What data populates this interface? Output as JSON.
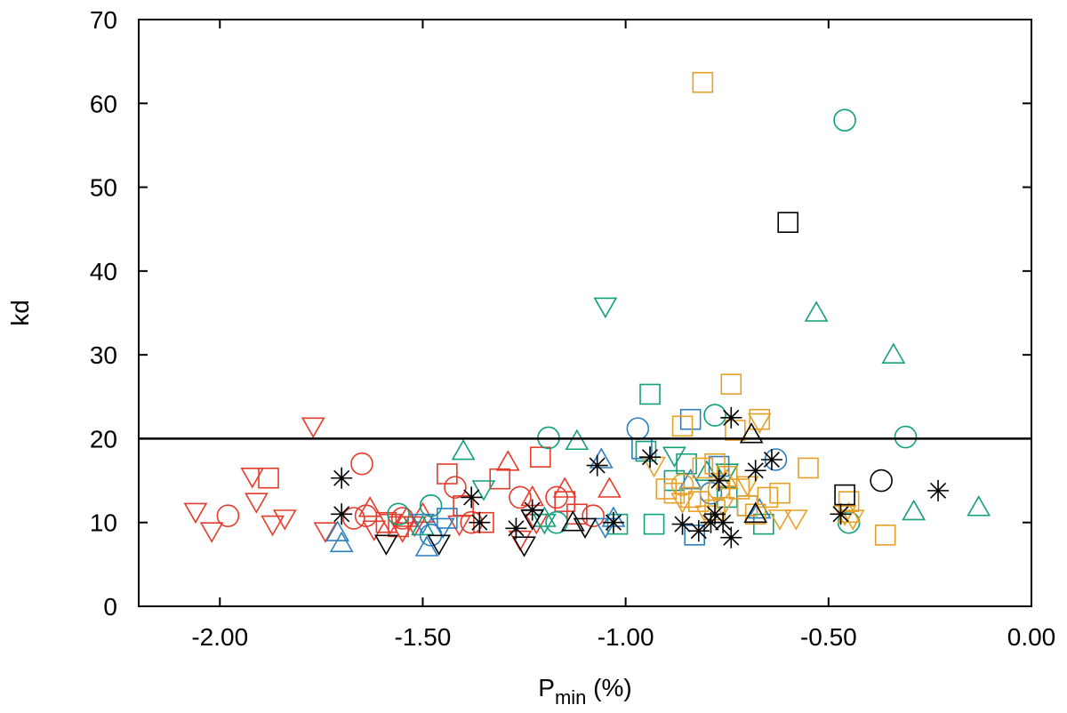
{
  "chart_data": {
    "type": "scatter",
    "title": "",
    "xlabel_main": "P",
    "xlabel_sub": "min",
    "xlabel_suffix": " (%)",
    "ylabel": "kd",
    "xlim": [
      -2.2,
      0.0
    ],
    "ylim": [
      0,
      70
    ],
    "x_ticks": [
      -2.0,
      -1.5,
      -1.0,
      -0.5,
      0.0
    ],
    "x_tick_labels": [
      "-2.00",
      "-1.50",
      "-1.00",
      "-0.50",
      "0.00"
    ],
    "y_ticks": [
      0,
      10,
      20,
      30,
      40,
      50,
      60,
      70
    ],
    "y_tick_labels": [
      "0",
      "10",
      "20",
      "30",
      "40",
      "50",
      "60",
      "70"
    ],
    "grid": false,
    "reference_line": {
      "y": 20,
      "color": "#000000"
    },
    "series": [
      {
        "marker": "circle",
        "color": "#e63b2a",
        "points": [
          [
            -1.98,
            10.8
          ],
          [
            -1.65,
            17.0
          ],
          [
            -1.67,
            10.5
          ],
          [
            -1.64,
            10.8
          ],
          [
            -1.42,
            14.2
          ],
          [
            -1.26,
            13.0
          ],
          [
            -1.17,
            13.0
          ],
          [
            -1.08,
            10.8
          ],
          [
            -1.38,
            10.0
          ],
          [
            -1.55,
            10.5
          ]
        ]
      },
      {
        "marker": "triangle-down",
        "color": "#e63b2a",
        "points": [
          [
            -2.06,
            11.3
          ],
          [
            -2.02,
            9.0
          ],
          [
            -1.92,
            15.5
          ],
          [
            -1.91,
            12.5
          ],
          [
            -1.87,
            9.8
          ],
          [
            -1.84,
            10.5
          ],
          [
            -1.77,
            21.5
          ],
          [
            -1.74,
            9.0
          ],
          [
            -1.62,
            9.2
          ],
          [
            -1.58,
            10.0
          ],
          [
            -1.55,
            9.0
          ],
          [
            -1.52,
            9.7
          ],
          [
            -1.41,
            9.8
          ],
          [
            -1.22,
            10.0
          ],
          [
            -1.26,
            8.0
          ]
        ]
      },
      {
        "marker": "square",
        "color": "#e63b2a",
        "points": [
          [
            -1.88,
            15.3
          ],
          [
            -1.59,
            10.0
          ],
          [
            -1.56,
            9.5
          ],
          [
            -1.44,
            15.8
          ],
          [
            -1.4,
            12.0
          ],
          [
            -1.31,
            15.2
          ],
          [
            -1.21,
            17.8
          ],
          [
            -1.15,
            12.5
          ],
          [
            -1.35,
            10.0
          ],
          [
            -1.12,
            11.0
          ]
        ]
      },
      {
        "marker": "triangle-up",
        "color": "#e63b2a",
        "points": [
          [
            -1.63,
            11.7
          ],
          [
            -1.54,
            10.5
          ],
          [
            -1.29,
            17.2
          ],
          [
            -1.23,
            13.0
          ],
          [
            -1.15,
            14.0
          ],
          [
            -1.04,
            14.0
          ],
          [
            -1.5,
            11.0
          ]
        ]
      },
      {
        "marker": "circle",
        "color": "#11a07a",
        "points": [
          [
            -1.56,
            11.0
          ],
          [
            -1.48,
            12.0
          ],
          [
            -1.19,
            20.1
          ],
          [
            -1.17,
            10.0
          ],
          [
            -0.46,
            58.0
          ],
          [
            -0.31,
            20.2
          ],
          [
            -0.45,
            10.0
          ],
          [
            -0.78,
            22.8
          ]
        ]
      },
      {
        "marker": "triangle-up",
        "color": "#11a07a",
        "points": [
          [
            -1.4,
            18.5
          ],
          [
            -1.12,
            19.7
          ],
          [
            -0.53,
            35.0
          ],
          [
            -0.34,
            30.0
          ],
          [
            -0.29,
            11.3
          ],
          [
            -0.13,
            11.8
          ],
          [
            -1.2,
            10.5
          ],
          [
            -0.8,
            16.0
          ],
          [
            -1.5,
            9.5
          ]
        ]
      },
      {
        "marker": "triangle-down",
        "color": "#11a07a",
        "points": [
          [
            -1.05,
            35.8
          ],
          [
            -1.35,
            14.0
          ],
          [
            -1.2,
            10.0
          ],
          [
            -0.88,
            18.0
          ],
          [
            -0.75,
            16.0
          ]
        ]
      },
      {
        "marker": "square",
        "color": "#11a07a",
        "points": [
          [
            -0.94,
            25.3
          ],
          [
            -0.95,
            18.5
          ],
          [
            -0.85,
            17.0
          ],
          [
            -1.02,
            9.8
          ],
          [
            -0.93,
            9.8
          ],
          [
            -0.66,
            9.8
          ],
          [
            -0.88,
            15.0
          ],
          [
            -0.75,
            13.0
          ]
        ]
      },
      {
        "marker": "circle",
        "color": "#2a7fc1",
        "points": [
          [
            -0.97,
            21.2
          ],
          [
            -0.63,
            17.5
          ],
          [
            -0.79,
            13.5
          ],
          [
            -1.48,
            8.5
          ]
        ]
      },
      {
        "marker": "triangle-up",
        "color": "#2a7fc1",
        "points": [
          [
            -1.71,
            8.8
          ],
          [
            -1.7,
            7.5
          ],
          [
            -1.49,
            7.0
          ],
          [
            -1.06,
            17.5
          ],
          [
            -1.03,
            10.5
          ],
          [
            -0.84,
            15.0
          ],
          [
            -0.67,
            11.5
          ]
        ]
      },
      {
        "marker": "triangle-down",
        "color": "#2a7fc1",
        "points": [
          [
            -1.5,
            10.0
          ],
          [
            -1.45,
            9.5
          ],
          [
            -1.05,
            9.5
          ]
        ]
      },
      {
        "marker": "square",
        "color": "#2a7fc1",
        "points": [
          [
            -0.84,
            22.3
          ],
          [
            -0.96,
            18.8
          ],
          [
            -0.83,
            8.5
          ],
          [
            -0.77,
            16.7
          ],
          [
            -1.44,
            10.5
          ],
          [
            -0.7,
            12.0
          ]
        ]
      },
      {
        "marker": "square",
        "color": "#e6a028",
        "points": [
          [
            -0.81,
            62.5
          ],
          [
            -0.74,
            26.5
          ],
          [
            -0.67,
            22.3
          ],
          [
            -0.86,
            21.5
          ],
          [
            -0.73,
            21.0
          ],
          [
            -0.9,
            14.0
          ],
          [
            -0.88,
            13.5
          ],
          [
            -0.84,
            13.0
          ],
          [
            -0.81,
            16.5
          ],
          [
            -0.78,
            17.0
          ],
          [
            -0.75,
            15.5
          ],
          [
            -0.72,
            14.0
          ],
          [
            -0.7,
            12.0
          ],
          [
            -0.68,
            11.0
          ],
          [
            -0.65,
            13.0
          ],
          [
            -0.62,
            13.5
          ],
          [
            -0.55,
            16.5
          ],
          [
            -0.82,
            12.5
          ],
          [
            -0.78,
            11.5
          ],
          [
            -0.36,
            8.5
          ],
          [
            -0.45,
            12.5
          ]
        ]
      },
      {
        "marker": "triangle-down",
        "color": "#e6a028",
        "points": [
          [
            -0.93,
            16.8
          ],
          [
            -0.86,
            12.5
          ],
          [
            -0.8,
            11.0
          ],
          [
            -0.76,
            12.0
          ],
          [
            -0.7,
            14.5
          ],
          [
            -0.67,
            22.0
          ],
          [
            -0.58,
            10.5
          ],
          [
            -0.46,
            11.0
          ],
          [
            -0.44,
            10.5
          ],
          [
            -0.62,
            10.5
          ]
        ]
      },
      {
        "marker": "circle",
        "color": "#e6a028",
        "points": [
          [
            -0.86,
            14.5
          ],
          [
            -0.77,
            14.0
          ]
        ]
      },
      {
        "marker": "triangle-up",
        "color": "#e6a028",
        "points": [
          [
            -0.45,
            11.0
          ],
          [
            -0.75,
            15.0
          ]
        ]
      },
      {
        "marker": "asterisk",
        "color": "#000000",
        "points": [
          [
            -1.7,
            15.3
          ],
          [
            -1.7,
            11.0
          ],
          [
            -1.38,
            13.0
          ],
          [
            -1.36,
            10.0
          ],
          [
            -1.27,
            9.3
          ],
          [
            -1.23,
            11.5
          ],
          [
            -1.07,
            16.8
          ],
          [
            -1.03,
            10.0
          ],
          [
            -0.94,
            17.8
          ],
          [
            -0.86,
            9.8
          ],
          [
            -0.82,
            9.0
          ],
          [
            -0.79,
            10.0
          ],
          [
            -0.78,
            11.0
          ],
          [
            -0.76,
            10.0
          ],
          [
            -0.74,
            8.2
          ],
          [
            -0.74,
            22.5
          ],
          [
            -0.77,
            15.0
          ],
          [
            -0.68,
            16.2
          ],
          [
            -0.64,
            17.5
          ],
          [
            -0.47,
            11.0
          ],
          [
            -0.23,
            13.8
          ]
        ]
      },
      {
        "marker": "triangle-down",
        "color": "#000000",
        "points": [
          [
            -1.59,
            7.5
          ],
          [
            -1.46,
            7.5
          ],
          [
            -1.25,
            7.3
          ],
          [
            -1.23,
            10.5
          ],
          [
            -1.1,
            9.5
          ]
        ]
      },
      {
        "marker": "triangle-up",
        "color": "#000000",
        "points": [
          [
            -1.13,
            10.0
          ],
          [
            -0.69,
            20.5
          ],
          [
            -0.68,
            11.0
          ]
        ]
      },
      {
        "marker": "square",
        "color": "#000000",
        "points": [
          [
            -0.6,
            45.8
          ],
          [
            -0.46,
            13.3
          ]
        ]
      },
      {
        "marker": "circle",
        "color": "#000000",
        "points": [
          [
            -0.37,
            15.0
          ]
        ]
      }
    ]
  }
}
